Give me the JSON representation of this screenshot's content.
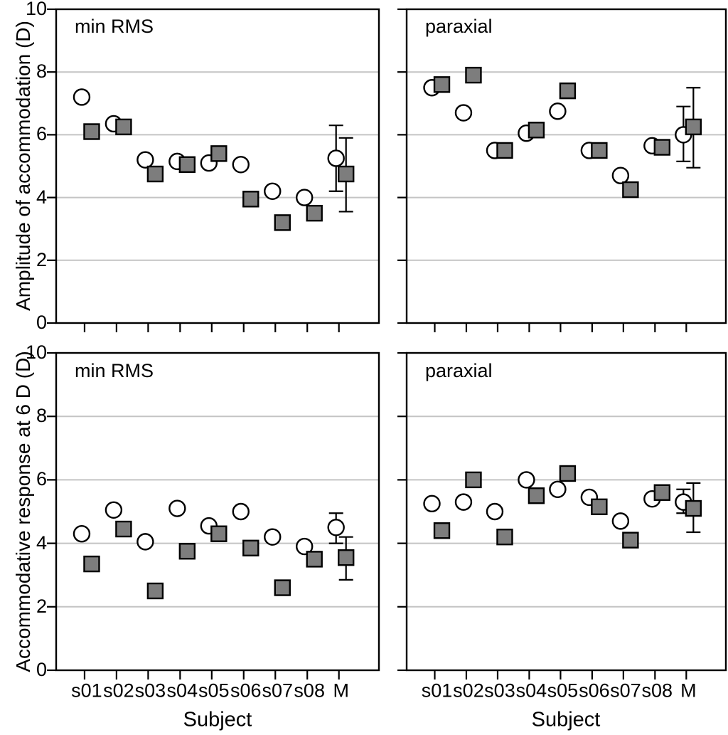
{
  "figure": {
    "background": "#ffffff",
    "frame_color": "#000000",
    "grid_color": "#c4c4c4",
    "text_color": "#000000",
    "circle_fill": "#ffffff",
    "square_fill": "#7d7d7d",
    "marker_stroke": "#000000"
  },
  "axes": {
    "y_title_top": "Amplitude of accommodation (D)",
    "y_title_bottom": "Accommodative response at 6 D (D)",
    "x_title_left": "Subject",
    "x_title_right": "Subject",
    "y_tick_labels": [
      "10",
      "8",
      "6",
      "4",
      "2",
      "0"
    ],
    "x_tick_labels": [
      "s01",
      "s02",
      "s03",
      "s04",
      "s05",
      "s06",
      "s07",
      "s08",
      "M"
    ]
  },
  "chart_data": [
    {
      "type": "scatter",
      "position": "top-left",
      "condition_label": "min RMS",
      "ylabel": "Amplitude of accommodation (D)",
      "xlabel": "",
      "ylim": [
        0,
        10
      ],
      "yticks": [
        0,
        2,
        4,
        6,
        8,
        10
      ],
      "gridlines": [
        2,
        4,
        6,
        8
      ],
      "categories": [
        "s01",
        "s02",
        "s03",
        "s04",
        "s05",
        "s06",
        "s07",
        "s08",
        "M"
      ],
      "series": [
        {
          "name": "open-circle",
          "marker": "circle",
          "values": [
            7.2,
            6.35,
            5.2,
            5.15,
            5.1,
            5.05,
            4.2,
            4.0,
            5.25
          ],
          "errors": [
            null,
            null,
            null,
            null,
            null,
            null,
            null,
            null,
            [
              4.2,
              6.3
            ]
          ]
        },
        {
          "name": "gray-square",
          "marker": "square",
          "values": [
            6.1,
            6.25,
            4.75,
            5.05,
            5.4,
            3.95,
            3.2,
            3.5,
            4.75
          ],
          "errors": [
            null,
            null,
            null,
            null,
            null,
            null,
            null,
            null,
            [
              3.55,
              5.9
            ]
          ]
        }
      ]
    },
    {
      "type": "scatter",
      "position": "top-right",
      "condition_label": "paraxial",
      "ylabel": "Amplitude of accommodation (D)",
      "xlabel": "",
      "ylim": [
        0,
        10
      ],
      "yticks": [
        0,
        2,
        4,
        6,
        8,
        10
      ],
      "gridlines": [
        2,
        4,
        6,
        8
      ],
      "categories": [
        "s01",
        "s02",
        "s03",
        "s04",
        "s05",
        "s06",
        "s07",
        "s08",
        "M"
      ],
      "series": [
        {
          "name": "open-circle",
          "marker": "circle",
          "values": [
            7.5,
            6.7,
            5.5,
            6.05,
            6.75,
            5.5,
            4.7,
            5.65,
            6.0
          ],
          "errors": [
            null,
            null,
            null,
            null,
            null,
            null,
            null,
            null,
            [
              5.15,
              6.9
            ]
          ]
        },
        {
          "name": "gray-square",
          "marker": "square",
          "values": [
            7.6,
            7.9,
            5.5,
            6.15,
            7.4,
            5.5,
            4.25,
            5.6,
            6.25
          ],
          "errors": [
            null,
            null,
            null,
            null,
            null,
            null,
            null,
            null,
            [
              4.95,
              7.5
            ]
          ]
        }
      ]
    },
    {
      "type": "scatter",
      "position": "bottom-left",
      "condition_label": "min RMS",
      "ylabel": "Accommodative response at 6 D (D)",
      "xlabel": "Subject",
      "ylim": [
        0,
        10
      ],
      "yticks": [
        0,
        2,
        4,
        6,
        8,
        10
      ],
      "gridlines": [
        2,
        4,
        6,
        8
      ],
      "categories": [
        "s01",
        "s02",
        "s03",
        "s04",
        "s05",
        "s06",
        "s07",
        "s08",
        "M"
      ],
      "series": [
        {
          "name": "open-circle",
          "marker": "circle",
          "values": [
            4.3,
            5.05,
            4.05,
            5.1,
            4.55,
            5.0,
            4.2,
            3.9,
            4.5
          ],
          "errors": [
            null,
            null,
            null,
            null,
            null,
            null,
            null,
            null,
            [
              4.0,
              4.95
            ]
          ]
        },
        {
          "name": "gray-square",
          "marker": "square",
          "values": [
            3.35,
            4.45,
            2.5,
            3.75,
            4.3,
            3.85,
            2.6,
            3.5,
            3.55
          ],
          "errors": [
            null,
            null,
            null,
            null,
            null,
            null,
            null,
            null,
            [
              2.85,
              4.2
            ]
          ]
        }
      ]
    },
    {
      "type": "scatter",
      "position": "bottom-right",
      "condition_label": "paraxial",
      "ylabel": "Accommodative response at 6 D (D)",
      "xlabel": "Subject",
      "ylim": [
        0,
        10
      ],
      "yticks": [
        0,
        2,
        4,
        6,
        8,
        10
      ],
      "gridlines": [
        2,
        4,
        6,
        8
      ],
      "categories": [
        "s01",
        "s02",
        "s03",
        "s04",
        "s05",
        "s06",
        "s07",
        "s08",
        "M"
      ],
      "series": [
        {
          "name": "open-circle",
          "marker": "circle",
          "values": [
            5.25,
            5.3,
            5.0,
            6.0,
            5.7,
            5.45,
            4.7,
            5.4,
            5.3
          ],
          "errors": [
            null,
            null,
            null,
            null,
            null,
            null,
            null,
            null,
            [
              4.95,
              5.7
            ]
          ]
        },
        {
          "name": "gray-square",
          "marker": "square",
          "values": [
            4.4,
            6.0,
            4.2,
            5.5,
            6.2,
            5.15,
            4.1,
            5.6,
            5.1
          ],
          "errors": [
            null,
            null,
            null,
            null,
            null,
            null,
            null,
            null,
            [
              4.35,
              5.9
            ]
          ]
        }
      ]
    }
  ]
}
